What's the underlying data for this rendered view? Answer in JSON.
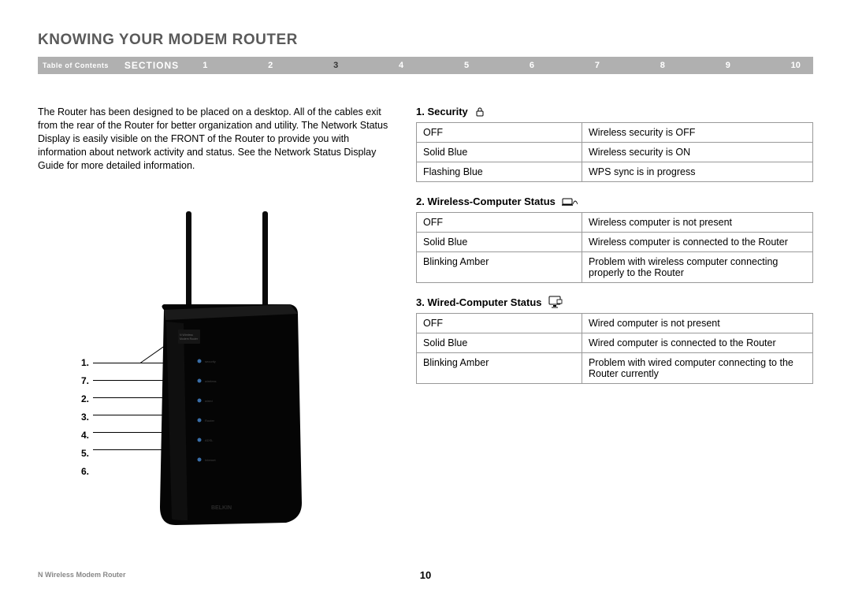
{
  "title": "KNOWING YOUR MODEM ROUTER",
  "nav": {
    "toc": "Table of Contents",
    "sections": "SECTIONS",
    "numbers": [
      "1",
      "2",
      "3",
      "4",
      "5",
      "6",
      "7",
      "8",
      "9",
      "10"
    ],
    "active": "3"
  },
  "intro": "The Router has been designed to be placed on a desktop. All of the cables exit from the rear of the Router for better organization and utility. The Network Status Display is easily visible on the FRONT of the Router to provide you with information about network activity and status. See the Network Status Display Guide for more detailed information.",
  "router_labels": [
    "1.",
    "7.",
    "2.",
    "3.",
    "4.",
    "5.",
    "6."
  ],
  "sections": [
    {
      "heading": "1. Security",
      "icon": "lock",
      "rows": [
        [
          "OFF",
          "Wireless security is OFF"
        ],
        [
          "Solid Blue",
          "Wireless security is ON"
        ],
        [
          "Flashing Blue",
          "WPS sync is in progress"
        ]
      ]
    },
    {
      "heading": "2. Wireless-Computer Status",
      "icon": "laptop-wifi",
      "rows": [
        [
          "OFF",
          "Wireless computer is not present"
        ],
        [
          "Solid Blue",
          "Wireless computer is connected to the Router"
        ],
        [
          "Blinking Amber",
          "Problem with wireless computer connecting properly to the Router"
        ]
      ]
    },
    {
      "heading": "3. Wired-Computer Status",
      "icon": "monitor",
      "rows": [
        [
          "OFF",
          "Wired computer is not present"
        ],
        [
          "Solid Blue",
          "Wired computer is connected to the Router"
        ],
        [
          "Blinking Amber",
          "Problem with wired computer connecting to the Router currently"
        ]
      ]
    }
  ],
  "footer": {
    "product": "N Wireless Modem Router",
    "page": "10"
  },
  "colors": {
    "navbar_bg": "#b0b0b0",
    "title_color": "#5a5a5a",
    "border": "#999999",
    "led_blue": "#3a6ea8"
  }
}
